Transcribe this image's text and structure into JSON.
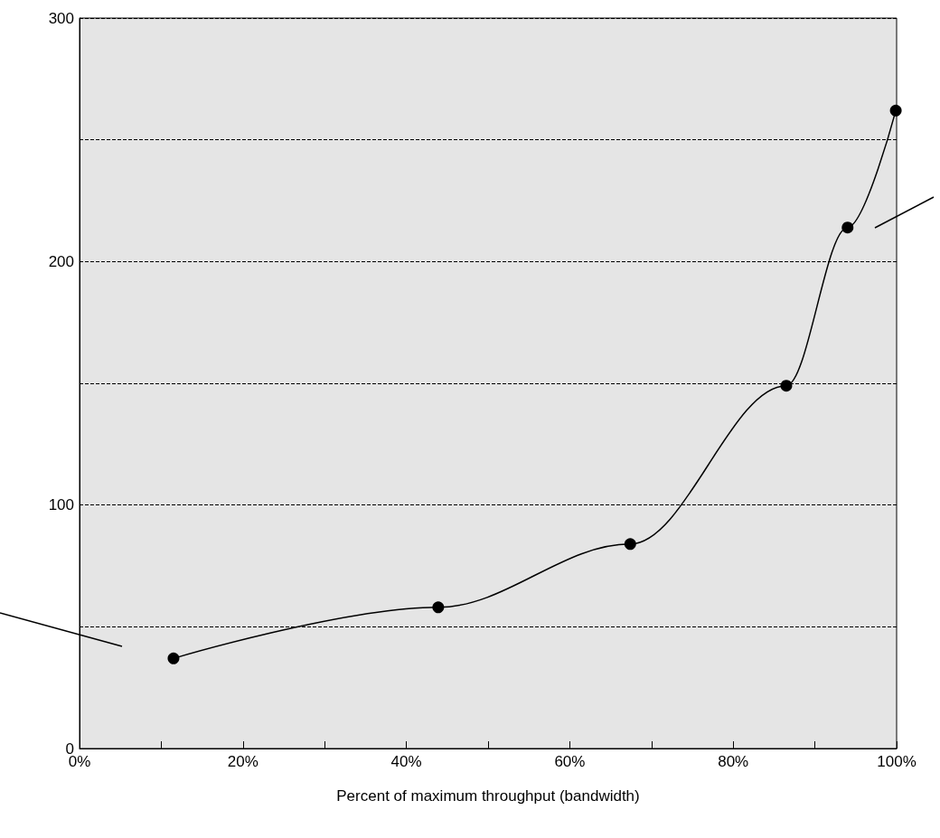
{
  "chart_data": {
    "type": "line",
    "xlabel": "Percent of maximum throughput (bandwidth)",
    "x": [
      11.5,
      43.9,
      67.4,
      86.5,
      94.0,
      99.9
    ],
    "series": [
      {
        "color": "#000000",
        "values": [
          37,
          58,
          84,
          149,
          214,
          262
        ]
      }
    ],
    "xlim": [
      0,
      100
    ],
    "xticks": [
      {
        "value": 0,
        "label": "0%"
      },
      {
        "value": 10,
        "label": null
      },
      {
        "value": 20,
        "label": "20%"
      },
      {
        "value": 30,
        "label": null
      },
      {
        "value": 40,
        "label": "40%"
      },
      {
        "value": 50,
        "label": null
      },
      {
        "value": 60,
        "label": "60%"
      },
      {
        "value": 70,
        "label": null
      },
      {
        "value": 80,
        "label": "80%"
      },
      {
        "value": 90,
        "label": null
      },
      {
        "value": 100,
        "label": "100%"
      }
    ],
    "ylim": [
      0,
      300
    ],
    "yticks": [
      0,
      {
        "value": 50,
        "label": null
      },
      100,
      {
        "value": 150,
        "label": null
      },
      200,
      {
        "value": 250,
        "label": null
      },
      300
    ],
    "grid": "y",
    "marker": "circle",
    "line_style": "solid"
  }
}
